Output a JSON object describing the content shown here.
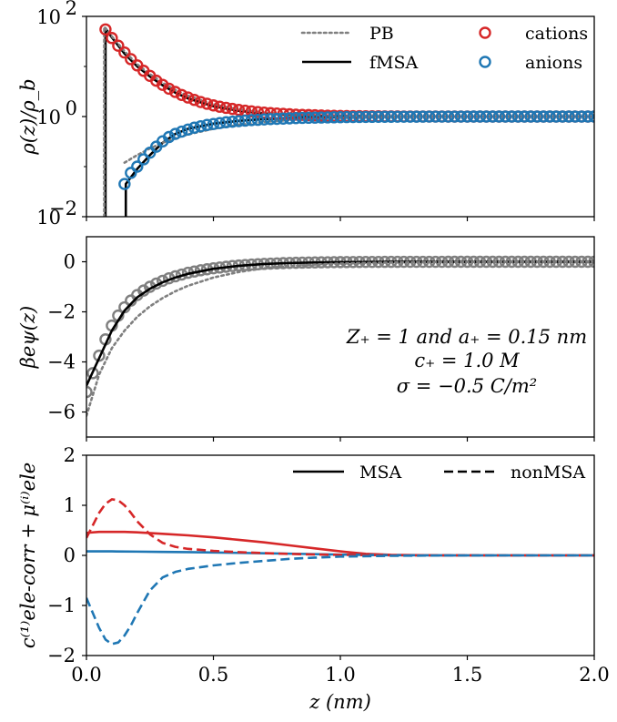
{
  "chart_data": [
    {
      "type": "line",
      "panel": "top",
      "ylabel": "ρ(z)/ρ_b",
      "yscale": "log",
      "ylim": [
        0.01,
        100
      ],
      "xlim": [
        0,
        2.0
      ],
      "yticks": [
        "10",
        "10"
      ],
      "ytick_exponents": [
        "2",
        "0",
        "−2"
      ],
      "ytick_bases": [
        "10",
        "10",
        "10"
      ],
      "legend": {
        "placement": "top-right",
        "entries": [
          {
            "label": "PB",
            "style": "dotted",
            "color": "#7f7f7f"
          },
          {
            "label": "fMSA",
            "style": "solid",
            "color": "#000000"
          },
          {
            "label": "cations",
            "style": "open-circle",
            "color": "#d62728"
          },
          {
            "label": "anions",
            "style": "open-circle",
            "color": "#1f77b4"
          }
        ]
      },
      "series": [
        {
          "name": "cations",
          "color": "#d62728",
          "marker": "o",
          "x": [
            0.075,
            0.1,
            0.125,
            0.15,
            0.175,
            0.2,
            0.225,
            0.25,
            0.275,
            0.3,
            0.325,
            0.35,
            0.375,
            0.4,
            0.425,
            0.45,
            0.475,
            0.5,
            0.525,
            0.55,
            0.575,
            0.6,
            0.625,
            0.65,
            0.675,
            0.7,
            0.725,
            0.75,
            0.775,
            0.8,
            0.825,
            0.85,
            0.875,
            0.9,
            0.925,
            0.95,
            0.975,
            1.0,
            1.025,
            1.05,
            1.075,
            1.1,
            1.125,
            1.15,
            1.175,
            1.2,
            1.225,
            1.25,
            1.275,
            1.3,
            1.325,
            1.35,
            1.375,
            1.4,
            1.425,
            1.45,
            1.475,
            1.5,
            1.525,
            1.55,
            1.575,
            1.6,
            1.625,
            1.65,
            1.675,
            1.7,
            1.725,
            1.75,
            1.775,
            1.8,
            1.825,
            1.85,
            1.875,
            1.9,
            1.925,
            1.95,
            1.975,
            2.0
          ],
          "y": [
            55,
            37,
            26,
            19,
            14,
            10.5,
            8.2,
            6.5,
            5.2,
            4.3,
            3.6,
            3.1,
            2.7,
            2.4,
            2.15,
            1.95,
            1.8,
            1.67,
            1.57,
            1.49,
            1.42,
            1.36,
            1.31,
            1.27,
            1.23,
            1.2,
            1.17,
            1.15,
            1.13,
            1.11,
            1.09,
            1.08,
            1.07,
            1.06,
            1.05,
            1.04,
            1.035,
            1.03,
            1.025,
            1.02,
            1.018,
            1.015,
            1.012,
            1.01,
            1.008,
            1.006,
            1.005,
            1.004,
            1.003,
            1.002,
            1.002,
            1.001,
            1.001,
            1.001,
            1.0,
            1.0,
            1.0,
            1.0,
            1.0,
            1.0,
            1.0,
            1.0,
            1.0,
            1.0,
            1.0,
            1.0,
            1.0,
            1.0,
            1.0,
            1.0,
            1.0,
            1.0,
            1.0,
            1.0,
            1.0,
            1.0,
            1.0,
            1.0
          ]
        },
        {
          "name": "anions",
          "color": "#1f77b4",
          "marker": "o",
          "x": [
            0.15,
            0.175,
            0.2,
            0.225,
            0.25,
            0.275,
            0.3,
            0.325,
            0.35,
            0.375,
            0.4,
            0.425,
            0.45,
            0.475,
            0.5,
            0.525,
            0.55,
            0.575,
            0.6,
            0.625,
            0.65,
            0.675,
            0.7,
            0.725,
            0.75,
            0.775,
            0.8,
            0.825,
            0.85,
            0.875,
            0.9,
            0.925,
            0.95,
            0.975,
            1.0,
            1.025,
            1.05,
            1.075,
            1.1,
            1.125,
            1.15,
            1.175,
            1.2,
            1.225,
            1.25,
            1.275,
            1.3,
            1.325,
            1.35,
            1.375,
            1.4,
            1.425,
            1.45,
            1.475,
            1.5,
            1.525,
            1.55,
            1.575,
            1.6,
            1.625,
            1.65,
            1.675,
            1.7,
            1.725,
            1.75,
            1.775,
            1.8,
            1.825,
            1.85,
            1.875,
            1.9,
            1.925,
            1.95,
            1.975,
            2.0
          ],
          "y": [
            0.045,
            0.075,
            0.1,
            0.14,
            0.19,
            0.25,
            0.32,
            0.39,
            0.45,
            0.5,
            0.55,
            0.6,
            0.64,
            0.68,
            0.71,
            0.74,
            0.77,
            0.79,
            0.81,
            0.83,
            0.85,
            0.86,
            0.875,
            0.89,
            0.9,
            0.91,
            0.92,
            0.93,
            0.94,
            0.945,
            0.95,
            0.955,
            0.96,
            0.965,
            0.97,
            0.975,
            0.978,
            0.98,
            0.983,
            0.985,
            0.987,
            0.989,
            0.99,
            0.992,
            0.993,
            0.994,
            0.995,
            0.996,
            0.997,
            0.997,
            0.998,
            0.998,
            0.999,
            0.999,
            0.999,
            1.0,
            1.0,
            1.0,
            1.0,
            1.0,
            1.0,
            1.0,
            1.0,
            1.0,
            1.0,
            1.0,
            1.0,
            1.0,
            1.0,
            1.0,
            1.0,
            1.0,
            1.0,
            1.0,
            1.0
          ]
        },
        {
          "name": "fMSA cations",
          "color": "#000000",
          "style": "solid",
          "x": [
            0.075,
            0.075,
            0.1,
            0.15,
            0.2,
            0.25,
            0.3,
            0.35,
            0.4,
            0.5,
            0.6,
            0.7,
            0.8,
            0.9,
            1.0,
            1.2,
            1.4,
            1.6,
            1.8,
            2.0
          ],
          "y": [
            0.01,
            58,
            38,
            18,
            10,
            6.3,
            4.2,
            3.0,
            2.3,
            1.6,
            1.3,
            1.15,
            1.08,
            1.04,
            1.02,
            1.005,
            1.001,
            1.0,
            1.0,
            1.0
          ]
        },
        {
          "name": "fMSA anions",
          "color": "#000000",
          "style": "solid",
          "x": [
            0.155,
            0.155,
            0.2,
            0.25,
            0.3,
            0.35,
            0.4,
            0.5,
            0.6,
            0.7,
            0.8,
            0.9,
            1.0,
            1.2,
            1.4,
            1.6,
            1.8,
            2.0
          ],
          "y": [
            0.01,
            0.045,
            0.09,
            0.17,
            0.3,
            0.45,
            0.57,
            0.72,
            0.82,
            0.89,
            0.93,
            0.96,
            0.975,
            0.99,
            0.997,
            1.0,
            1.0,
            1.0
          ]
        },
        {
          "name": "PB cations",
          "color": "#7f7f7f",
          "style": "dotted",
          "x": [
            0.07,
            0.07,
            0.1,
            0.15,
            0.2,
            0.25,
            0.3,
            0.35,
            0.4,
            0.5,
            0.6,
            0.7,
            0.8,
            0.9,
            1.0,
            1.2,
            1.4,
            1.6,
            1.8,
            2.0
          ],
          "y": [
            0.01,
            62,
            40,
            20,
            11,
            7,
            4.7,
            3.4,
            2.6,
            1.75,
            1.38,
            1.2,
            1.11,
            1.06,
            1.03,
            1.01,
            1.003,
            1.001,
            1.0,
            1.0
          ]
        },
        {
          "name": "PB anions",
          "color": "#7f7f7f",
          "style": "dotted",
          "x": [
            0.15,
            0.2,
            0.25,
            0.3,
            0.35,
            0.4,
            0.5,
            0.6,
            0.7,
            0.8,
            0.9,
            1.0,
            1.2,
            1.4,
            1.6,
            1.8,
            2.0
          ],
          "y": [
            0.12,
            0.17,
            0.23,
            0.3,
            0.37,
            0.44,
            0.57,
            0.68,
            0.78,
            0.85,
            0.9,
            0.94,
            0.98,
            0.993,
            0.998,
            1.0,
            1.0
          ]
        }
      ]
    },
    {
      "type": "line",
      "panel": "middle",
      "ylabel": "βeψ(z)",
      "ylim": [
        -7,
        1
      ],
      "xlim": [
        0,
        2.0
      ],
      "yticks": [
        "0",
        "−2",
        "−4",
        "−6"
      ],
      "annotation": [
        "Z₊ = 1 and a₊ = 0.15 nm",
        "c₊ = 1.0 M",
        "σ = −0.5 C/m²"
      ],
      "series": [
        {
          "name": "data",
          "color": "#7f7f7f",
          "marker": "o",
          "x": [
            0.0,
            0.025,
            0.05,
            0.075,
            0.1,
            0.125,
            0.15,
            0.175,
            0.2,
            0.225,
            0.25,
            0.275,
            0.3,
            0.325,
            0.35,
            0.375,
            0.4,
            0.425,
            0.45,
            0.475,
            0.5,
            0.525,
            0.55,
            0.575,
            0.6,
            0.625,
            0.65,
            0.675,
            0.7,
            0.725,
            0.75,
            0.775,
            0.8,
            0.825,
            0.85,
            0.875,
            0.9,
            0.925,
            0.95,
            0.975,
            1.0,
            1.025,
            1.05,
            1.075,
            1.1,
            1.125,
            1.15,
            1.175,
            1.2,
            1.225,
            1.25,
            1.275,
            1.3,
            1.325,
            1.35,
            1.375,
            1.4,
            1.425,
            1.45,
            1.475,
            1.5,
            1.525,
            1.55,
            1.575,
            1.6,
            1.625,
            1.65,
            1.675,
            1.7,
            1.725,
            1.75,
            1.775,
            1.8,
            1.825,
            1.85,
            1.875,
            1.9,
            1.925,
            1.95,
            1.975,
            2.0
          ],
          "y": [
            -5.2,
            -4.45,
            -3.75,
            -3.1,
            -2.55,
            -2.15,
            -1.82,
            -1.55,
            -1.33,
            -1.15,
            -1.0,
            -0.87,
            -0.76,
            -0.66,
            -0.58,
            -0.51,
            -0.44,
            -0.39,
            -0.34,
            -0.3,
            -0.26,
            -0.23,
            -0.2,
            -0.17,
            -0.15,
            -0.13,
            -0.11,
            -0.1,
            -0.085,
            -0.075,
            -0.065,
            -0.055,
            -0.048,
            -0.041,
            -0.035,
            -0.03,
            -0.026,
            -0.022,
            -0.019,
            -0.016,
            -0.014,
            -0.012,
            -0.01,
            -0.008,
            -0.007,
            -0.006,
            -0.005,
            -0.004,
            -0.003,
            -0.003,
            -0.002,
            -0.002,
            -0.002,
            -0.001,
            -0.001,
            -0.001,
            -0.001,
            0,
            0,
            0,
            0,
            0,
            0,
            0,
            0,
            0,
            0,
            0,
            0,
            0,
            0,
            0,
            0,
            0,
            0,
            0,
            0,
            0,
            0,
            0,
            0
          ]
        },
        {
          "name": "fMSA",
          "color": "#000000",
          "style": "solid",
          "x": [
            0.0,
            0.05,
            0.1,
            0.15,
            0.2,
            0.25,
            0.3,
            0.35,
            0.4,
            0.5,
            0.6,
            0.7,
            0.8,
            0.9,
            1.0,
            1.2,
            1.4,
            1.6,
            1.8,
            2.0
          ],
          "y": [
            -4.95,
            -3.85,
            -2.75,
            -1.95,
            -1.42,
            -1.08,
            -0.82,
            -0.63,
            -0.48,
            -0.28,
            -0.16,
            -0.09,
            -0.05,
            -0.028,
            -0.015,
            -0.004,
            -0.001,
            0,
            0,
            0
          ]
        },
        {
          "name": "PB",
          "color": "#7f7f7f",
          "style": "dotted",
          "x": [
            0.0,
            0.05,
            0.1,
            0.15,
            0.2,
            0.25,
            0.3,
            0.35,
            0.4,
            0.5,
            0.6,
            0.7,
            0.8,
            0.9,
            1.0,
            1.2,
            1.4,
            1.6,
            1.8,
            2.0
          ],
          "y": [
            -6.15,
            -4.5,
            -3.45,
            -2.75,
            -2.2,
            -1.78,
            -1.45,
            -1.18,
            -0.96,
            -0.63,
            -0.41,
            -0.26,
            -0.17,
            -0.11,
            -0.07,
            -0.028,
            -0.011,
            -0.004,
            -0.002,
            0
          ]
        }
      ]
    },
    {
      "type": "line",
      "panel": "bottom",
      "ylabel": "c⁽¹⁾ele-corr + μ⁽ⁱ⁾ele",
      "xlabel": "z (nm)",
      "ylim": [
        -2,
        2
      ],
      "xlim": [
        0,
        2.0
      ],
      "yticks": [
        "2",
        "1",
        "0",
        "−1",
        "−2"
      ],
      "xticks": [
        "0.0",
        "0.5",
        "1.0",
        "1.5",
        "2.0"
      ],
      "legend": {
        "placement": "top-right",
        "entries": [
          {
            "label": "MSA",
            "style": "solid",
            "color": "#000000"
          },
          {
            "label": "nonMSA",
            "style": "dashed",
            "color": "#000000"
          }
        ]
      },
      "series": [
        {
          "name": "MSA cations",
          "color": "#d62728",
          "style": "solid",
          "x": [
            0.0,
            0.05,
            0.1,
            0.15,
            0.2,
            0.3,
            0.4,
            0.5,
            0.6,
            0.7,
            0.8,
            0.9,
            1.0,
            1.1,
            1.2,
            1.4,
            1.6,
            1.8,
            2.0
          ],
          "y": [
            0.45,
            0.47,
            0.47,
            0.47,
            0.46,
            0.43,
            0.4,
            0.36,
            0.31,
            0.26,
            0.2,
            0.14,
            0.08,
            0.03,
            0.01,
            0.0,
            0.0,
            0.0,
            0.0
          ]
        },
        {
          "name": "MSA anions",
          "color": "#1f77b4",
          "style": "solid",
          "x": [
            0.0,
            0.1,
            0.2,
            0.3,
            0.4,
            0.5,
            0.6,
            0.7,
            0.8,
            0.9,
            1.0,
            1.1,
            1.2,
            1.4,
            1.6,
            1.8,
            2.0
          ],
          "y": [
            0.08,
            0.08,
            0.075,
            0.07,
            0.065,
            0.058,
            0.05,
            0.042,
            0.034,
            0.025,
            0.016,
            0.008,
            0.003,
            0.0,
            0.0,
            0.0,
            0.0
          ]
        },
        {
          "name": "nonMSA cations",
          "color": "#d62728",
          "style": "dashed",
          "x": [
            0.0,
            0.025,
            0.05,
            0.075,
            0.1,
            0.125,
            0.15,
            0.175,
            0.2,
            0.25,
            0.3,
            0.35,
            0.4,
            0.5,
            0.6,
            0.7,
            0.8,
            0.9,
            1.0,
            1.2,
            1.4,
            1.6,
            1.8,
            2.0
          ],
          "y": [
            0.35,
            0.6,
            0.85,
            1.03,
            1.12,
            1.1,
            1.0,
            0.85,
            0.68,
            0.42,
            0.25,
            0.17,
            0.13,
            0.09,
            0.065,
            0.045,
            0.03,
            0.018,
            0.01,
            0.003,
            0.001,
            0,
            0,
            0
          ]
        },
        {
          "name": "nonMSA anions",
          "color": "#1f77b4",
          "style": "dashed",
          "x": [
            0.0,
            0.025,
            0.05,
            0.075,
            0.1,
            0.125,
            0.15,
            0.175,
            0.2,
            0.25,
            0.3,
            0.35,
            0.4,
            0.5,
            0.6,
            0.7,
            0.8,
            0.9,
            1.0,
            1.2,
            1.4,
            1.6,
            1.8,
            2.0
          ],
          "y": [
            -0.85,
            -1.15,
            -1.45,
            -1.68,
            -1.77,
            -1.74,
            -1.6,
            -1.4,
            -1.15,
            -0.7,
            -0.44,
            -0.33,
            -0.27,
            -0.2,
            -0.15,
            -0.11,
            -0.07,
            -0.045,
            -0.025,
            -0.008,
            -0.002,
            0,
            0,
            0
          ]
        }
      ]
    }
  ]
}
